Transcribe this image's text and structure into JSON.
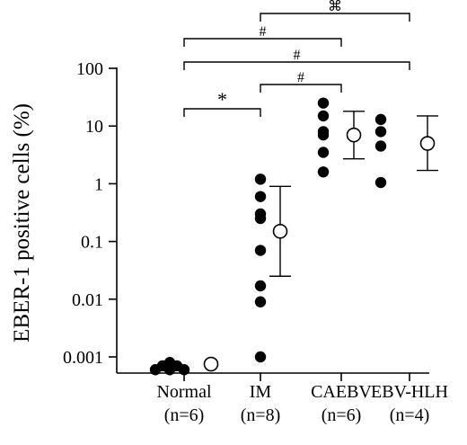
{
  "chart_data": {
    "type": "scatter",
    "ylabel": "EBER-1 positive cells (%)",
    "yscale": "log",
    "ylim": [
      0.0005,
      100
    ],
    "yticks": [
      0.001,
      0.01,
      0.1,
      1,
      10,
      100
    ],
    "ytick_labels": [
      "0.001",
      "0.01",
      "0.1",
      "1",
      "10",
      "100"
    ],
    "grid": false,
    "groups": [
      {
        "name": "Normal",
        "n_label": "(n=6)",
        "points": [
          0.0006,
          0.0006,
          0.0006,
          0.0007,
          0.0007,
          0.0008
        ],
        "mean": 0.00075,
        "err_low": null,
        "err_high": null
      },
      {
        "name": "IM",
        "n_label": "(n=8)",
        "points": [
          1.2,
          0.6,
          0.3,
          0.25,
          0.07,
          0.017,
          0.009,
          0.001
        ],
        "mean": 0.15,
        "err_low": 0.025,
        "err_high": 0.9
      },
      {
        "name": "CAEBV",
        "n_label": "(n=6)",
        "points": [
          25,
          15,
          8,
          7,
          3.5,
          1.6
        ],
        "mean": 7,
        "err_low": 2.7,
        "err_high": 18
      },
      {
        "name": "EBV-HLH",
        "n_label": "(n=4)",
        "points": [
          13,
          8,
          4.5,
          1.05
        ],
        "mean": 5,
        "err_low": 1.7,
        "err_high": 15
      }
    ],
    "comparisons": [
      {
        "from": "Normal",
        "to": "IM",
        "label": "*"
      },
      {
        "from": "Normal",
        "to": "CAEBV",
        "label": "#"
      },
      {
        "from": "Normal",
        "to": "EBV-HLH",
        "label": "#"
      },
      {
        "from": "IM",
        "to": "CAEBV",
        "label": "#"
      },
      {
        "from": "IM",
        "to": "EBV-HLH",
        "label": "⌘"
      }
    ],
    "series_style": {
      "individual": "filled circle",
      "mean": "open circle with error bar"
    }
  }
}
